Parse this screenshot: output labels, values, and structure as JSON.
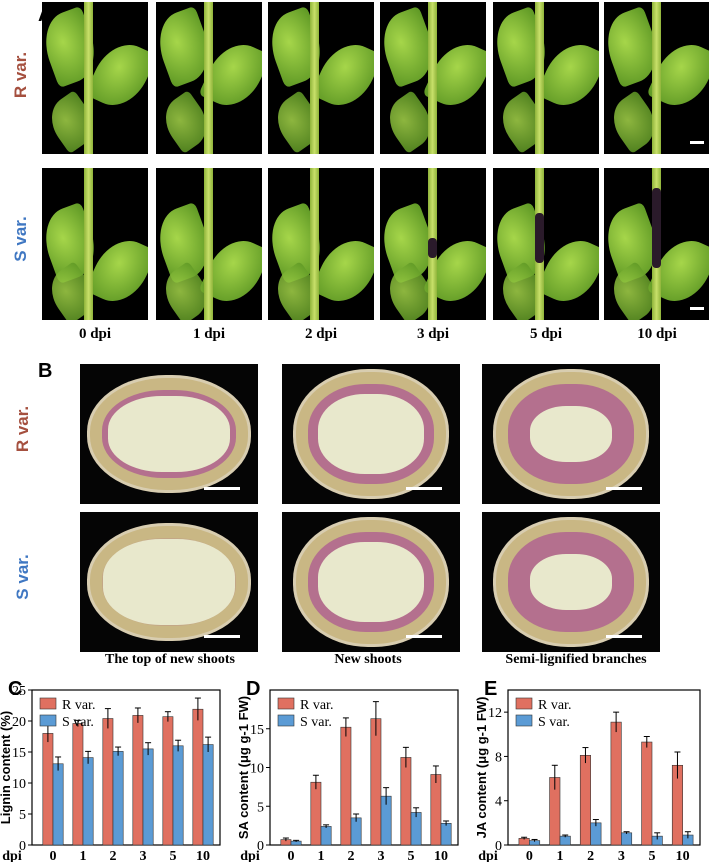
{
  "panels": {
    "a": "A",
    "b": "B",
    "c": "C",
    "d": "D",
    "e": "E"
  },
  "rows": {
    "r_var": "R var.",
    "s_var": "S var."
  },
  "colors": {
    "r_color": "#a5503f",
    "s_color": "#3f77c2",
    "bar_r": "#e07060",
    "bar_s": "#5b9bd5"
  },
  "timepoints": [
    "0 dpi",
    "1 dpi",
    "2 dpi",
    "3 dpi",
    "5 dpi",
    "10 dpi"
  ],
  "sections": [
    "The top of new shoots",
    "New shoots",
    "Semi-lignified branches"
  ],
  "chart_data": [
    {
      "type": "bar",
      "panel": "C",
      "categories": [
        "0",
        "1",
        "2",
        "3",
        "5",
        "10"
      ],
      "x_prefix": "dpi",
      "ylabel": "Lignin content (%)",
      "ylim": [
        0,
        25
      ],
      "yticks": [
        0,
        5,
        10,
        15,
        20,
        25
      ],
      "legend": "top-left",
      "series": [
        {
          "name": "R var.",
          "values": [
            18.0,
            19.6,
            20.4,
            20.9,
            20.7,
            21.9
          ],
          "errors": [
            1.4,
            0.5,
            1.6,
            1.2,
            0.8,
            1.8
          ]
        },
        {
          "name": "S var.",
          "values": [
            13.1,
            14.1,
            15.1,
            15.5,
            16.0,
            16.2
          ],
          "errors": [
            1.1,
            1.0,
            0.7,
            1.0,
            0.9,
            1.2
          ]
        }
      ]
    },
    {
      "type": "bar",
      "panel": "D",
      "categories": [
        "0",
        "1",
        "2",
        "3",
        "5",
        "10"
      ],
      "x_prefix": "dpi",
      "ylabel": "SA content (μg g-1 FW)",
      "ylim": [
        0,
        20
      ],
      "yticks": [
        0,
        5,
        10,
        15
      ],
      "legend": "top-left",
      "series": [
        {
          "name": "R var.",
          "values": [
            0.7,
            8.1,
            15.2,
            16.3,
            11.3,
            9.1
          ],
          "errors": [
            0.2,
            0.9,
            1.2,
            2.2,
            1.3,
            1.1
          ]
        },
        {
          "name": "S var.",
          "values": [
            0.5,
            2.4,
            3.5,
            6.3,
            4.2,
            2.8
          ],
          "errors": [
            0.1,
            0.2,
            0.5,
            1.1,
            0.6,
            0.3
          ]
        }
      ]
    },
    {
      "type": "bar",
      "panel": "E",
      "categories": [
        "0",
        "1",
        "2",
        "3",
        "5",
        "10"
      ],
      "x_prefix": "dpi",
      "ylabel": "JA content (μg g-1 FW)",
      "ylim": [
        0,
        14
      ],
      "yticks": [
        0,
        4,
        8,
        12
      ],
      "legend": "top-left",
      "series": [
        {
          "name": "R var.",
          "values": [
            0.6,
            6.1,
            8.1,
            11.1,
            9.3,
            7.2
          ],
          "errors": [
            0.1,
            1.1,
            0.7,
            0.9,
            0.5,
            1.2
          ]
        },
        {
          "name": "S var.",
          "values": [
            0.4,
            0.8,
            2.0,
            1.1,
            0.8,
            0.9
          ],
          "errors": [
            0.1,
            0.1,
            0.3,
            0.1,
            0.3,
            0.3
          ]
        }
      ]
    }
  ]
}
